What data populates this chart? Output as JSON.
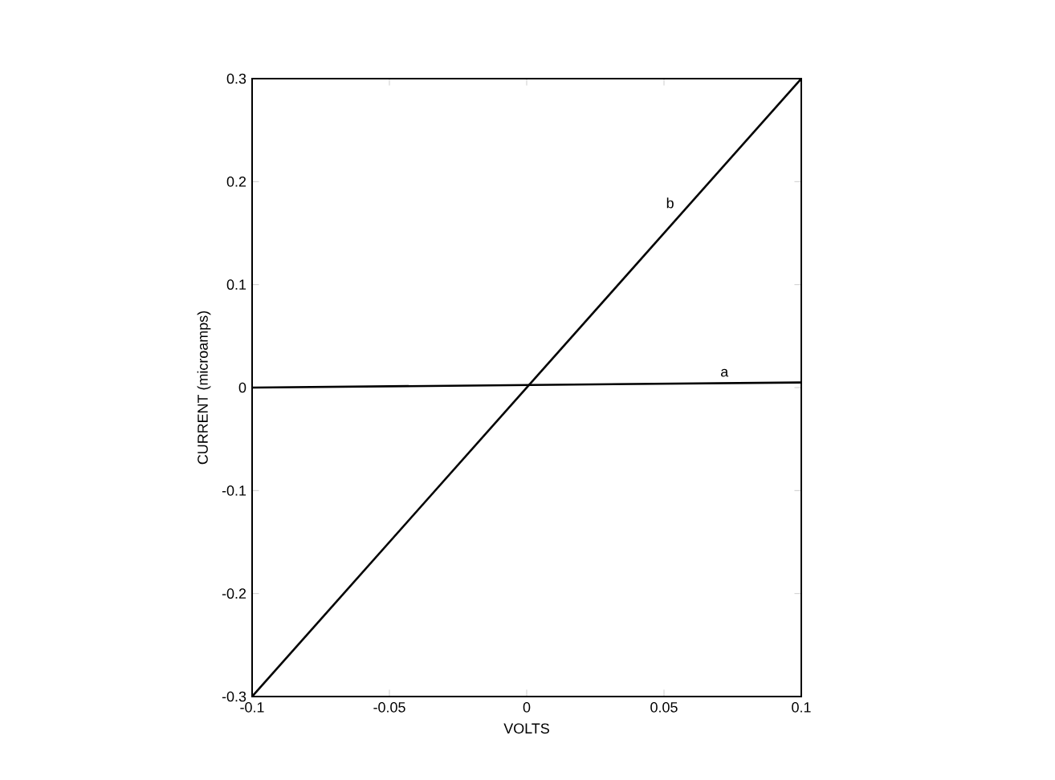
{
  "chart_data": {
    "type": "line",
    "xlabel": "VOLTS",
    "ylabel": "CURRENT (microamps)",
    "x": [
      -0.1,
      0.1
    ],
    "series": [
      {
        "name": "a",
        "color": "#000000",
        "values": [
          0,
          0.005
        ]
      },
      {
        "name": "b",
        "color": "#000000",
        "values": [
          -0.3,
          0.3
        ]
      }
    ],
    "xlim": [
      -0.1,
      0.1
    ],
    "ylim": [
      -0.3,
      0.3
    ],
    "xticks": [
      -0.1,
      -0.05,
      0,
      0.05,
      0.1
    ],
    "yticks": [
      -0.3,
      -0.2,
      -0.1,
      0,
      0.1,
      0.2,
      0.3
    ],
    "grid": false,
    "legend": false,
    "marker": "none",
    "line_style": "solid"
  }
}
